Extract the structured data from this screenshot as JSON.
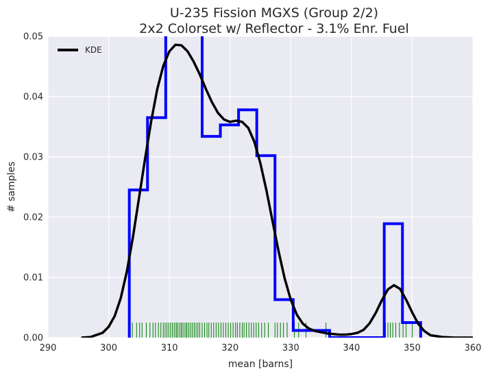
{
  "chart_data": {
    "type": "histogram",
    "title": "U-235 Fission MGXS (Group 2/2)",
    "subtitle": "2x2 Colorset w/ Reflector - 3.1% Enr. Fuel",
    "xlabel": "mean [barns]",
    "ylabel": "# samples",
    "xlim": [
      290,
      360
    ],
    "ylim": [
      0,
      0.05
    ],
    "xticks": [
      "290",
      "300",
      "310",
      "320",
      "330",
      "340",
      "350",
      "360"
    ],
    "yticks": [
      "0.00",
      "0.01",
      "0.02",
      "0.03",
      "0.04",
      "0.05"
    ],
    "grid": true,
    "legend_position": "top-left",
    "colors": {
      "background": "#eaeaf2",
      "grid": "#ffffff",
      "histogram": "#0000ff",
      "kde": "#000000",
      "rug": "#008000"
    },
    "histogram": {
      "bin_edges": [
        303.4,
        306.4,
        309.4,
        312.4,
        315.4,
        318.4,
        321.4,
        324.4,
        327.4,
        330.4,
        333.4,
        336.4,
        339.4,
        342.4,
        345.4,
        348.4,
        351.4
      ],
      "densities": [
        0.0245,
        0.0365,
        0.053,
        0.053,
        0.0334,
        0.0353,
        0.0378,
        0.0302,
        0.0063,
        0.0012,
        0.0012,
        0.0,
        0.0,
        0.0,
        0.0189,
        0.0025
      ]
    },
    "kde": {
      "name": "KDE",
      "x": [
        295.5,
        297,
        299,
        300,
        301,
        302,
        303,
        304,
        305,
        306,
        307,
        308,
        309,
        310,
        311,
        312,
        313,
        314,
        315,
        316,
        317,
        318,
        319,
        320,
        321,
        322,
        323,
        324,
        325,
        326,
        327,
        328,
        329,
        330,
        331,
        332,
        333,
        334,
        335,
        336,
        337,
        338,
        339,
        340,
        341,
        342,
        343,
        344,
        345,
        346,
        347,
        348,
        349,
        350,
        351,
        352,
        353,
        355,
        357,
        360
      ],
      "y": [
        0.0,
        0.0001,
        0.0008,
        0.0018,
        0.0036,
        0.0066,
        0.011,
        0.0167,
        0.0232,
        0.0297,
        0.0359,
        0.0412,
        0.0451,
        0.0475,
        0.0486,
        0.0485,
        0.0475,
        0.0458,
        0.0437,
        0.0413,
        0.0391,
        0.0373,
        0.0362,
        0.0358,
        0.036,
        0.0358,
        0.0348,
        0.0325,
        0.0289,
        0.0244,
        0.0193,
        0.0143,
        0.0098,
        0.0063,
        0.0038,
        0.0023,
        0.0015,
        0.0011,
        0.0009,
        0.0007,
        0.0006,
        0.0005,
        0.0005,
        0.0006,
        0.0008,
        0.0013,
        0.0024,
        0.0041,
        0.0062,
        0.008,
        0.0087,
        0.0081,
        0.0063,
        0.0042,
        0.0023,
        0.0011,
        0.0004,
        0.0001,
        0.0,
        0.0
      ]
    },
    "rug": {
      "height": 0.0025,
      "samples": [
        303.4,
        303.9,
        304.6,
        305.1,
        305.5,
        306.2,
        306.8,
        307.3,
        307.7,
        308.2,
        308.6,
        309.0,
        309.3,
        309.6,
        309.9,
        310.2,
        310.5,
        310.8,
        311.1,
        311.3,
        311.6,
        311.9,
        312.1,
        312.4,
        312.7,
        312.9,
        313.2,
        313.5,
        313.8,
        314.1,
        314.4,
        314.7,
        315.0,
        315.4,
        315.8,
        316.2,
        316.5,
        316.9,
        317.3,
        317.7,
        318.1,
        318.5,
        318.9,
        319.3,
        319.7,
        320.1,
        320.5,
        320.9,
        321.2,
        321.6,
        322.0,
        322.3,
        322.7,
        323.1,
        323.5,
        323.9,
        324.3,
        324.7,
        325.2,
        325.7,
        326.3,
        327.4,
        327.8,
        328.3,
        328.8,
        329.4,
        330.6,
        331.3,
        332.5,
        335.8,
        345.6,
        346.0,
        346.4,
        346.8,
        347.3,
        347.9,
        348.5,
        349.0,
        350.0,
        351.3
      ]
    }
  }
}
